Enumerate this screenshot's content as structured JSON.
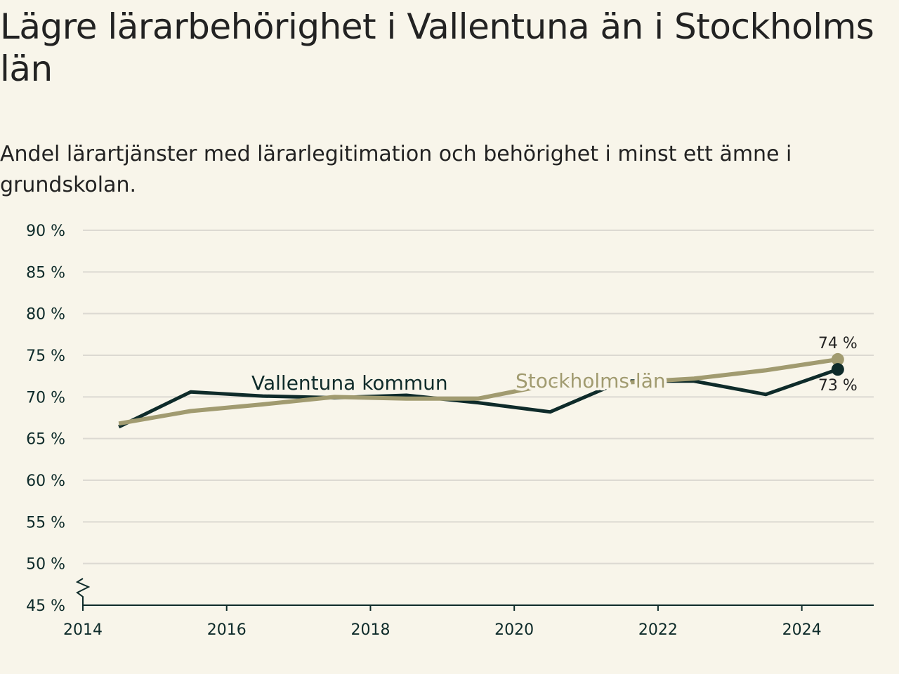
{
  "title": "Lägre lärarbehörighet i Vallentuna än i Stockholms län",
  "subtitle": "Andel lärartjänster med lärarlegitimation och behörighet i minst ett ämne i grundskolan.",
  "colors": {
    "background": "#f8f5ea",
    "vallentuna": "#0e2b2a",
    "stockholm": "#a19b70",
    "grid": "#dcd9d2"
  },
  "chart_data": {
    "type": "line",
    "title": "Lägre lärarbehörighet i Vallentuna än i Stockholms län",
    "subtitle": "Andel lärartjänster med lärarlegitimation och behörighet i minst ett ämne i grundskolan.",
    "xlabel": "",
    "ylabel": "",
    "xlim": [
      2014,
      2025
    ],
    "ylim": [
      45,
      90
    ],
    "x_ticks": [
      "2014",
      "2016",
      "2018",
      "2020",
      "2022",
      "2024"
    ],
    "y_ticks": [
      "45 %",
      "50 %",
      "55 %",
      "60 %",
      "65 %",
      "70 %",
      "75 %",
      "80 %",
      "85 %",
      "90 %"
    ],
    "grid": true,
    "axis_break": true,
    "x": [
      2014.5,
      2015.5,
      2016.5,
      2017.5,
      2018.5,
      2019.5,
      2020.5,
      2021.5,
      2022.5,
      2023.5,
      2024.5
    ],
    "series": [
      {
        "name": "Stockholms län",
        "color": "#a19b70",
        "values": [
          66.8,
          68.3,
          69.1,
          70.0,
          69.8,
          69.8,
          71.5,
          71.7,
          72.2,
          73.2,
          74.5
        ],
        "end_label": "74 %"
      },
      {
        "name": "Vallentuna kommun",
        "color": "#0e2b2a",
        "values": [
          66.4,
          70.6,
          70.1,
          69.9,
          70.2,
          69.3,
          68.2,
          71.9,
          71.9,
          70.3,
          73.3
        ],
        "end_label": "73 %"
      }
    ]
  }
}
